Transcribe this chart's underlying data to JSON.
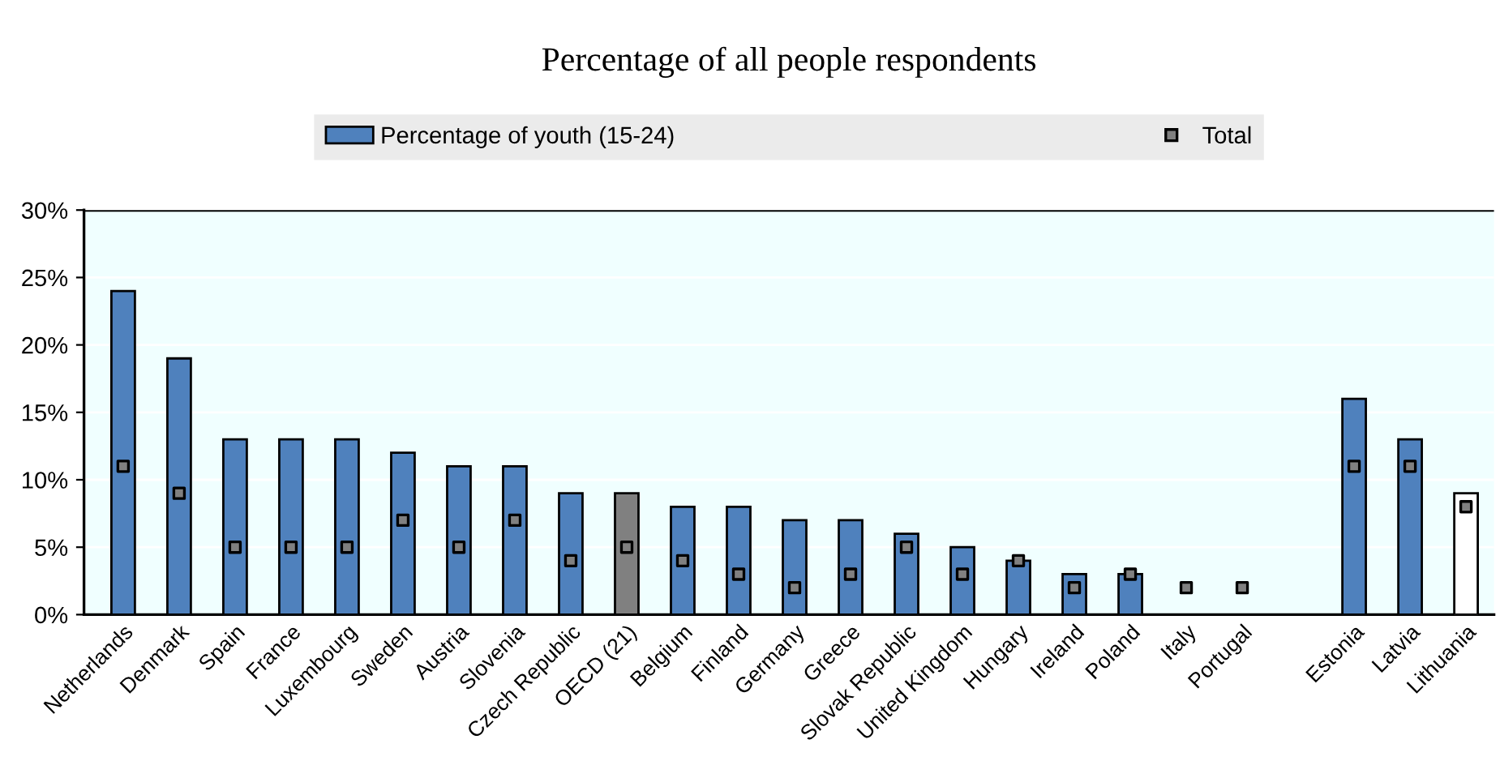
{
  "chart_data": {
    "type": "bar",
    "title": "Percentage of all people respondents",
    "categories": [
      "Netherlands",
      "Denmark",
      "Spain",
      "France",
      "Luxembourg",
      "Sweden",
      "Austria",
      "Slovenia",
      "Czech Republic",
      "OECD (21)",
      "Belgium",
      "Finland",
      "Germany",
      "Greece",
      "Slovak Republic",
      "United Kingdom",
      "Hungary",
      "Ireland",
      "Poland",
      "Italy",
      "Portugal",
      null,
      "Estonia",
      "Latvia",
      "Lithuania"
    ],
    "series": [
      {
        "name": "Percentage of youth (15-24)",
        "color": "#4f81bd",
        "colors": [
          "#4f81bd",
          "#4f81bd",
          "#4f81bd",
          "#4f81bd",
          "#4f81bd",
          "#4f81bd",
          "#4f81bd",
          "#4f81bd",
          "#4f81bd",
          "#808080",
          "#4f81bd",
          "#4f81bd",
          "#4f81bd",
          "#4f81bd",
          "#4f81bd",
          "#4f81bd",
          "#4f81bd",
          "#4f81bd",
          "#4f81bd",
          "#4f81bd",
          "#4f81bd",
          "#4f81bd",
          "#4f81bd",
          "#4f81bd",
          "#ffffff"
        ],
        "values": [
          24,
          19,
          13,
          13,
          13,
          12,
          11,
          11,
          9,
          9,
          8,
          8,
          7,
          7,
          6,
          5,
          4,
          3,
          3,
          null,
          null,
          null,
          16,
          13,
          9
        ]
      },
      {
        "name": "Total",
        "type": "scatter",
        "color": "#808080",
        "marker": "square",
        "values": [
          11,
          9,
          5,
          5,
          5,
          7,
          5,
          7,
          4,
          5,
          4,
          3,
          2,
          3,
          5,
          3,
          4,
          2,
          3,
          2,
          2,
          null,
          11,
          11,
          8
        ]
      }
    ],
    "ylim": [
      0,
      30
    ],
    "yticks": [
      {
        "value": 0,
        "label": "0%"
      },
      {
        "value": 5,
        "label": "5%"
      },
      {
        "value": 10,
        "label": "10%"
      },
      {
        "value": 15,
        "label": "15%"
      },
      {
        "value": 20,
        "label": "20%"
      },
      {
        "value": 25,
        "label": "25%"
      },
      {
        "value": 30,
        "label": "30%"
      }
    ],
    "grid": "y",
    "legend": "top"
  }
}
